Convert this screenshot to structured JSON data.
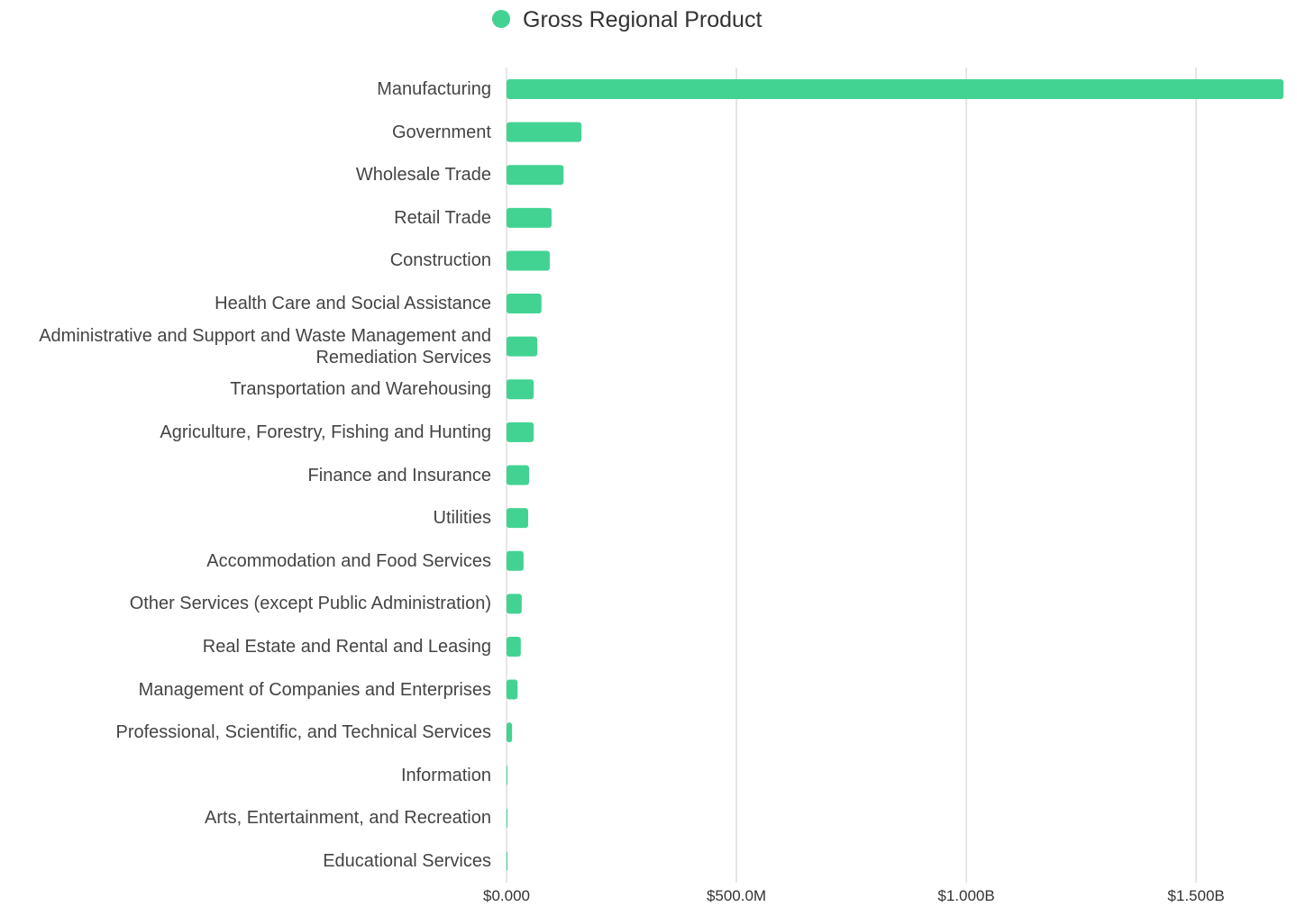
{
  "chart_data": {
    "type": "barh",
    "series": [
      {
        "name": "Gross Regional Product",
        "color": "#42d392",
        "values": [
          1690000000,
          163000000,
          124000000,
          98000000,
          94000000,
          76000000,
          67000000,
          59000000,
          59000000,
          49000000,
          47000000,
          37000000,
          33000000,
          31000000,
          24000000,
          12000000,
          2000000,
          2000000,
          1500000
        ]
      }
    ],
    "categories": [
      "Manufacturing",
      "Government",
      "Wholesale Trade",
      "Retail Trade",
      "Construction",
      "Health Care and Social Assistance",
      "Administrative and Support and Waste Management and Remediation Services",
      "Transportation and Warehousing",
      "Agriculture, Forestry, Fishing and Hunting",
      "Finance and Insurance",
      "Utilities",
      "Accommodation and Food Services",
      "Other Services (except Public Administration)",
      "Real Estate and Rental and Leasing",
      "Management of Companies and Enterprises",
      "Professional, Scientific, and Technical Services",
      "Information",
      "Arts, Entertainment, and Recreation",
      "Educational Services"
    ],
    "xlim": [
      0,
      1690000000
    ],
    "xticks": [
      {
        "value": 0,
        "label": "$0.000"
      },
      {
        "value": 500000000,
        "label": "$500.0M"
      },
      {
        "value": 1000000000,
        "label": "$1.000B"
      },
      {
        "value": 1500000000,
        "label": "$1.500B"
      }
    ],
    "grid": true,
    "legend": "top"
  }
}
